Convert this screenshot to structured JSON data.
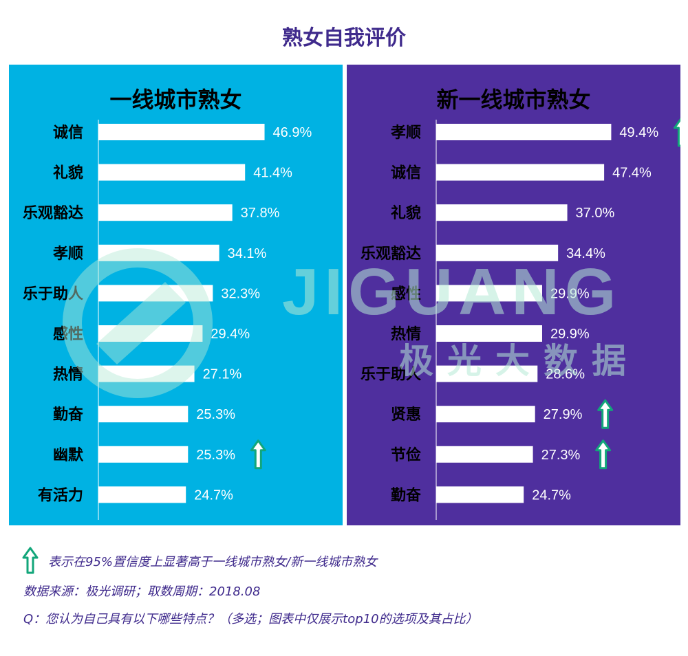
{
  "title": "熟女自我评价",
  "colors": {
    "left_panel": "#00b2e3",
    "right_panel": "#4f2f9e",
    "bar": "#ffffff",
    "title": "#3f2a8c",
    "arrow": "#12a67a"
  },
  "watermark": {
    "text": "JIGUANG",
    "sub": "极光大数据"
  },
  "chart_data": [
    {
      "type": "bar",
      "title": "一线城市熟女",
      "categories": [
        "诚信",
        "礼貌",
        "乐观豁达",
        "孝顺",
        "乐于助人",
        "感性",
        "热情",
        "勤奋",
        "幽默",
        "有活力"
      ],
      "values": [
        46.9,
        41.4,
        37.8,
        34.1,
        32.3,
        29.4,
        27.1,
        25.3,
        25.3,
        24.7
      ],
      "labels": [
        "46.9%",
        "41.4%",
        "37.8%",
        "34.1%",
        "32.3%",
        "29.4%",
        "27.1%",
        "25.3%",
        "25.3%",
        "24.7%"
      ],
      "significant": [
        false,
        false,
        false,
        false,
        false,
        false,
        false,
        false,
        true,
        false
      ],
      "unit": "%"
    },
    {
      "type": "bar",
      "title": "新一线城市熟女",
      "categories": [
        "孝顺",
        "诚信",
        "礼貌",
        "乐观豁达",
        "感性",
        "热情",
        "乐于助人",
        "贤惠",
        "节俭",
        "勤奋"
      ],
      "values": [
        49.4,
        47.4,
        37.0,
        34.4,
        29.9,
        29.9,
        28.6,
        27.9,
        27.3,
        24.7
      ],
      "labels": [
        "49.4%",
        "47.4%",
        "37.0%",
        "34.4%",
        "29.9%",
        "29.9%",
        "28.6%",
        "27.9%",
        "27.3%",
        "24.7%"
      ],
      "significant": [
        true,
        false,
        false,
        false,
        false,
        false,
        false,
        true,
        true,
        false
      ],
      "unit": "%"
    }
  ],
  "footer": {
    "legend": "表示在95%置信度上显著高于一线城市熟女/新一线城市熟女",
    "source": "数据来源：极光调研；取数周期：2018.08",
    "question": "Q：您认为自己具有以下哪些特点？（多选；图表中仅展示top10的选项及其占比）"
  }
}
